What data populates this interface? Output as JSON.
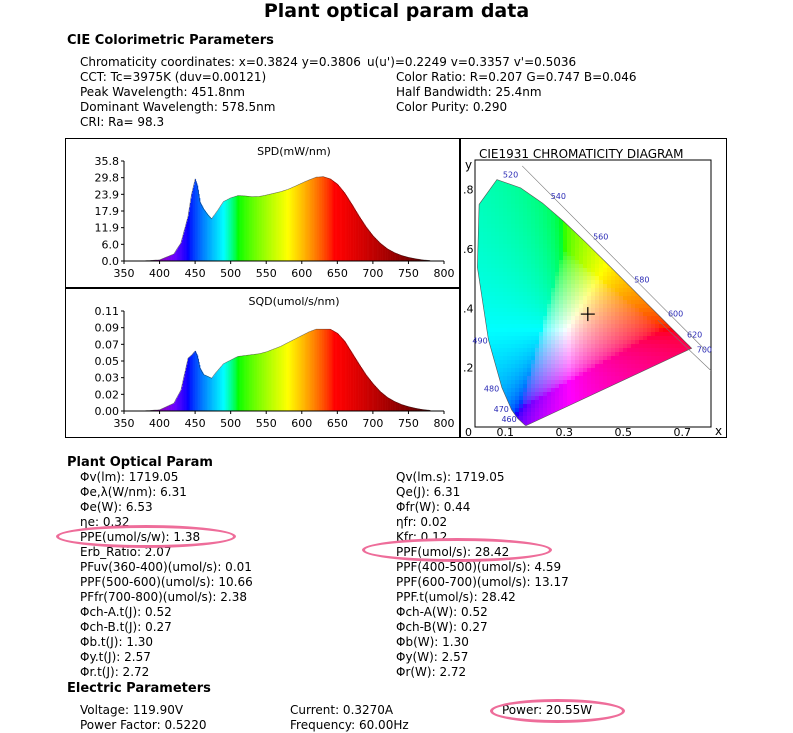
{
  "title": "Plant optical param data",
  "cie": {
    "heading": "CIE Colorimetric Parameters",
    "left": [
      "Chromaticity coordinates: x=0.3824 y=0.3806",
      "CCT: Tc=3975K (duv=0.00121)",
      "Peak Wavelength: 451.8nm",
      "Dominant Wavelength: 578.5nm",
      "CRI: Ra= 98.3"
    ],
    "right": [
      "u(u')=0.2249 v=0.3357 v'=0.5036",
      "Color Ratio: R=0.207  G=0.747  B=0.046",
      "Half Bandwidth: 25.4nm",
      "Color Purity: 0.290"
    ]
  },
  "chart_data": [
    {
      "type": "area",
      "title": "SPD(mW/nm)",
      "xlim": [
        350,
        800
      ],
      "ylim": [
        0,
        35.8
      ],
      "xticks": [
        "350",
        "400",
        "450",
        "500",
        "550",
        "600",
        "650",
        "700",
        "750",
        "800"
      ],
      "yticks": [
        "35.8",
        "29.8",
        "23.9",
        "17.9",
        "11.9",
        "6.0",
        "0.0"
      ],
      "x": [
        380,
        400,
        420,
        430,
        440,
        445,
        450,
        453,
        457,
        462,
        468,
        473,
        480,
        490,
        500,
        510,
        520,
        530,
        540,
        550,
        560,
        570,
        580,
        590,
        600,
        610,
        620,
        630,
        640,
        650,
        660,
        670,
        680,
        690,
        700,
        710,
        720,
        730,
        740,
        750,
        760,
        770,
        780
      ],
      "values": [
        0.1,
        0.4,
        2.5,
        6.5,
        16,
        24,
        29.3,
        27,
        21,
        18.6,
        16.5,
        15.1,
        17.5,
        21.3,
        22.6,
        23.4,
        23.3,
        23.0,
        23.1,
        23.6,
        24.2,
        24.8,
        25.6,
        26.7,
        27.9,
        29.0,
        30.0,
        30.2,
        29.4,
        27.5,
        24.4,
        20.4,
        16.2,
        12.3,
        9.0,
        6.4,
        4.4,
        3.0,
        2.0,
        1.3,
        0.8,
        0.4,
        0.2
      ]
    },
    {
      "type": "area",
      "title": "SQD(umol/s/nm)",
      "xlim": [
        350,
        800
      ],
      "ylim": [
        0,
        0.11
      ],
      "xticks": [
        "350",
        "400",
        "450",
        "500",
        "550",
        "600",
        "650",
        "700",
        "750",
        "800"
      ],
      "yticks": [
        "0.11",
        "0.09",
        "0.07",
        "0.05",
        "0.03",
        "0.02",
        "0.00"
      ],
      "x": [
        380,
        400,
        420,
        430,
        440,
        445,
        450,
        453,
        457,
        462,
        468,
        473,
        480,
        490,
        500,
        510,
        520,
        530,
        540,
        550,
        560,
        570,
        580,
        590,
        600,
        610,
        620,
        630,
        640,
        650,
        660,
        670,
        680,
        690,
        700,
        710,
        720,
        730,
        740,
        750,
        760,
        770,
        780
      ],
      "values": [
        0.0003,
        0.0013,
        0.0085,
        0.023,
        0.058,
        0.0615,
        0.066,
        0.061,
        0.047,
        0.04,
        0.038,
        0.036,
        0.043,
        0.052,
        0.056,
        0.06,
        0.061,
        0.062,
        0.063,
        0.065,
        0.068,
        0.071,
        0.075,
        0.079,
        0.083,
        0.087,
        0.09,
        0.09,
        0.09,
        0.0855,
        0.077,
        0.0645,
        0.052,
        0.04,
        0.03,
        0.0215,
        0.0151,
        0.0106,
        0.0072,
        0.0048,
        0.003,
        0.0016,
        0.0008
      ]
    },
    {
      "type": "scatter",
      "title": "CIE1931 CHROMATICITY DIAGRAM",
      "xlabel": "x",
      "ylabel": "y",
      "xlim": [
        0,
        0.8
      ],
      "ylim": [
        0,
        0.9
      ],
      "xticks": [
        "0",
        "0.1",
        "0.3",
        "0.5",
        "0.7"
      ],
      "yticks": [
        ".8",
        ".6",
        ".4",
        ".2"
      ],
      "wavelength_labels": [
        "460",
        "470",
        "480",
        "490",
        "520",
        "540",
        "560",
        "580",
        "600",
        "620",
        "700"
      ],
      "point": {
        "x": 0.3824,
        "y": 0.3806
      }
    }
  ],
  "plant": {
    "heading": "Plant Optical Param",
    "left": [
      "Φv(lm):  1719.05",
      "Φe,λ(W/nm):   6.31",
      "Φe(W):   6.53",
      "ηe:   0.32",
      "PPE(umol/s/w):   1.38",
      "Erb_Ratio:   2.07",
      "PFuv(360-400)(umol/s):   0.01",
      "PPF(500-600)(umol/s):  10.66",
      "PFfr(700-800)(umol/s):   2.38",
      "Φch-A.t(J):   0.52",
      "Φch-B.t(J):   0.27",
      "Φb.t(J):   1.30",
      "Φy.t(J):   2.57",
      "Φr.t(J):   2.72"
    ],
    "right": [
      "Qv(lm.s):  1719.05",
      "Qe(J):   6.31",
      "Φfr(W):   0.44",
      "ηfr:   0.02",
      "Kfr:   0.12",
      "PPF(umol/s):   28.42",
      "PPF(400-500)(umol/s):   4.59",
      "PPF(600-700)(umol/s):  13.17",
      "PPF.t(umol/s):   28.42",
      "Φch-A(W):   0.52",
      "Φch-B(W):   0.27",
      "Φb(W):   1.30",
      "Φy(W):   2.57",
      "Φr(W):   2.72"
    ]
  },
  "electric": {
    "heading": "Electric Parameters",
    "voltage": "Voltage: 119.90V",
    "power_factor": "Power Factor: 0.5220",
    "current": "Current: 0.3270A",
    "frequency": "Frequency: 60.00Hz",
    "power": "Power: 20.55W"
  },
  "highlight_color": "#ee6d9a"
}
